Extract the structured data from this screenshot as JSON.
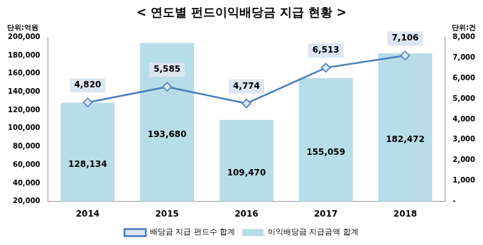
{
  "chart_data": {
    "type": "bar",
    "title": "< 연도별 펀드이익배당금 지급 현황 >",
    "y_label": "단위:억원",
    "y2_label": "단위:건",
    "categories": [
      "2014",
      "2015",
      "2016",
      "2017",
      "2018"
    ],
    "series": [
      {
        "name": "이익배당금 지급금액 합계",
        "type": "bar",
        "color": "#b7dde8",
        "values": [
          128134,
          193680,
          109470,
          155059,
          182472
        ],
        "value_labels": [
          "128,134",
          "193,680",
          "109,470",
          "155,059",
          "182,472"
        ]
      },
      {
        "name": "배당금 지급 펀드수 합계",
        "type": "line",
        "color": "#4a7ebb",
        "marker": "diamond",
        "axis": "y2",
        "values": [
          4820,
          5585,
          4774,
          6513,
          7106
        ],
        "value_labels": [
          "4,820",
          "5,585",
          "4,774",
          "6,513",
          "7,106"
        ]
      }
    ],
    "ylim": [
      20000,
      200000
    ],
    "yticks": [
      {
        "value": 20000,
        "label": "20,000"
      },
      {
        "value": 40000,
        "label": "40,000"
      },
      {
        "value": 60000,
        "label": "60,000"
      },
      {
        "value": 80000,
        "label": "80,000"
      },
      {
        "value": 100000,
        "label": "100,000"
      },
      {
        "value": 120000,
        "label": "120,000"
      },
      {
        "value": 140000,
        "label": "140,000"
      },
      {
        "value": 160000,
        "label": "160,000"
      },
      {
        "value": 180000,
        "label": "180,000"
      },
      {
        "value": 200000,
        "label": "200,000"
      }
    ],
    "y2lim": [
      0,
      8000
    ],
    "y2ticks": [
      {
        "value": 0,
        "label": "-"
      },
      {
        "value": 1000,
        "label": "1,000"
      },
      {
        "value": 2000,
        "label": "2,000"
      },
      {
        "value": 3000,
        "label": "3,000"
      },
      {
        "value": 4000,
        "label": "4,000"
      },
      {
        "value": 5000,
        "label": "5,000"
      },
      {
        "value": 6000,
        "label": "6,000"
      },
      {
        "value": 7000,
        "label": "7,000"
      },
      {
        "value": 8000,
        "label": "8,000"
      }
    ],
    "grid": false,
    "legend": "bottom",
    "data_labels": true
  }
}
